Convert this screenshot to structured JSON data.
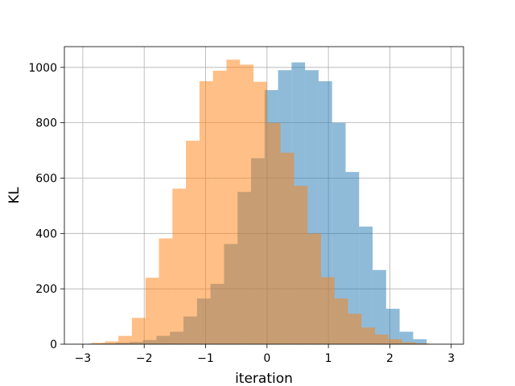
{
  "chart_data": {
    "type": "bar",
    "title": "",
    "xlabel": "iteration",
    "ylabel": "KL",
    "xlim": [
      -3.3,
      3.2
    ],
    "ylim": [
      0,
      1075
    ],
    "grid": true,
    "xticks": [
      -3,
      -2,
      -1,
      0,
      1,
      2,
      3
    ],
    "yticks": [
      0,
      200,
      400,
      600,
      800,
      1000
    ],
    "bin_width": 0.22,
    "series": [
      {
        "color": "#1f77b4",
        "alpha": 0.5,
        "bins": [
          {
            "x0": -2.9,
            "count": 2
          },
          {
            "x0": -2.68,
            "count": 3
          },
          {
            "x0": -2.46,
            "count": 5
          },
          {
            "x0": -2.24,
            "count": 8
          },
          {
            "x0": -2.02,
            "count": 15
          },
          {
            "x0": -1.8,
            "count": 30
          },
          {
            "x0": -1.58,
            "count": 45
          },
          {
            "x0": -1.36,
            "count": 100
          },
          {
            "x0": -1.14,
            "count": 165
          },
          {
            "x0": -0.92,
            "count": 218
          },
          {
            "x0": -0.7,
            "count": 362
          },
          {
            "x0": -0.48,
            "count": 550
          },
          {
            "x0": -0.26,
            "count": 672
          },
          {
            "x0": -0.04,
            "count": 918
          },
          {
            "x0": 0.18,
            "count": 990
          },
          {
            "x0": 0.4,
            "count": 1018
          },
          {
            "x0": 0.62,
            "count": 990
          },
          {
            "x0": 0.84,
            "count": 950
          },
          {
            "x0": 1.06,
            "count": 800
          },
          {
            "x0": 1.28,
            "count": 622
          },
          {
            "x0": 1.5,
            "count": 425
          },
          {
            "x0": 1.72,
            "count": 268
          },
          {
            "x0": 1.94,
            "count": 128
          },
          {
            "x0": 2.16,
            "count": 45
          },
          {
            "x0": 2.38,
            "count": 18
          }
        ]
      },
      {
        "color": "#ff7f0e",
        "alpha": 0.5,
        "bins": [
          {
            "x0": -2.86,
            "count": 5
          },
          {
            "x0": -2.64,
            "count": 10
          },
          {
            "x0": -2.42,
            "count": 30
          },
          {
            "x0": -2.2,
            "count": 95
          },
          {
            "x0": -1.98,
            "count": 240
          },
          {
            "x0": -1.76,
            "count": 382
          },
          {
            "x0": -1.54,
            "count": 562
          },
          {
            "x0": -1.32,
            "count": 735
          },
          {
            "x0": -1.1,
            "count": 950
          },
          {
            "x0": -0.88,
            "count": 988
          },
          {
            "x0": -0.66,
            "count": 1028
          },
          {
            "x0": -0.44,
            "count": 1010
          },
          {
            "x0": -0.22,
            "count": 948
          },
          {
            "x0": 0.0,
            "count": 800
          },
          {
            "x0": 0.22,
            "count": 692
          },
          {
            "x0": 0.44,
            "count": 572
          },
          {
            "x0": 0.66,
            "count": 400
          },
          {
            "x0": 0.88,
            "count": 242
          },
          {
            "x0": 1.1,
            "count": 165
          },
          {
            "x0": 1.32,
            "count": 110
          },
          {
            "x0": 1.54,
            "count": 60
          },
          {
            "x0": 1.76,
            "count": 35
          },
          {
            "x0": 1.98,
            "count": 18
          },
          {
            "x0": 2.2,
            "count": 7
          },
          {
            "x0": 2.42,
            "count": 3
          }
        ]
      }
    ]
  }
}
